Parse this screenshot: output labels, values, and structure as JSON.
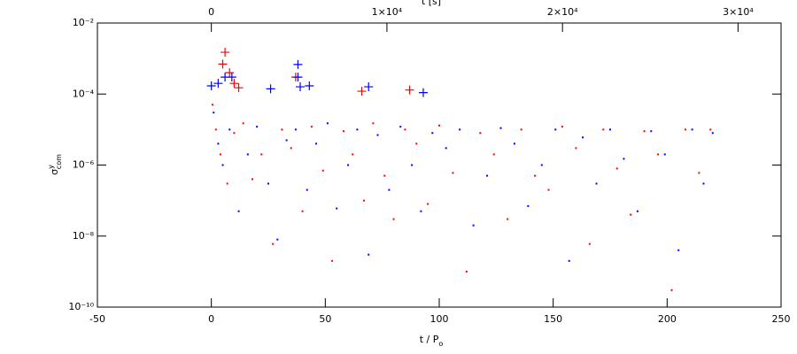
{
  "chart_data": {
    "type": "scatter",
    "xlabel": {
      "main": "t / P",
      "sub": "o"
    },
    "ylabel": {
      "main": "σ",
      "sup": "y",
      "sub": "com"
    },
    "x2label": "t [s]",
    "xlim": [
      -50,
      250
    ],
    "xticks": [
      -50,
      0,
      50,
      100,
      150,
      200,
      250
    ],
    "x2lim": [
      -6490,
      32450
    ],
    "x2ticks": [
      0,
      {
        "value": 10000,
        "label": "1×10⁴"
      },
      {
        "value": 20000,
        "label": "2×10⁴"
      },
      {
        "value": 30000,
        "label": "3×10⁴"
      }
    ],
    "ylog": true,
    "ylim": [
      1e-10,
      0.01
    ],
    "yticks": [
      {
        "value": 1e-10,
        "label": "10⁻¹⁰"
      },
      {
        "value": 1e-08,
        "label": "10⁻⁸"
      },
      {
        "value": 1e-06,
        "label": "10⁻⁶"
      },
      {
        "value": 0.0001,
        "label": "10⁻⁴"
      },
      {
        "value": 0.01,
        "label": "10⁻²"
      }
    ],
    "series": [
      {
        "color": "#0000ff",
        "marker": "dot",
        "x": [
          1,
          3,
          5,
          8,
          12,
          16,
          20,
          25,
          29,
          33,
          37,
          42,
          46,
          51,
          55,
          60,
          64,
          69,
          73,
          78,
          83,
          88,
          92,
          97,
          103,
          109,
          115,
          121,
          127,
          133,
          139,
          145,
          151,
          157,
          163,
          169,
          175,
          181,
          187,
          193,
          199,
          205,
          211,
          216,
          220
        ],
        "values": [
          3e-05,
          4e-06,
          1e-06,
          1e-05,
          5e-08,
          2e-06,
          1.2e-05,
          3e-07,
          8e-09,
          5e-06,
          1e-05,
          2e-07,
          4e-06,
          1.5e-05,
          6e-08,
          1e-06,
          1e-05,
          3e-09,
          7e-06,
          2e-07,
          1.2e-05,
          1e-06,
          5e-08,
          8e-06,
          3e-06,
          1e-05,
          2e-08,
          5e-07,
          1.1e-05,
          4e-06,
          7e-08,
          1e-06,
          1e-05,
          2e-09,
          6e-06,
          3e-07,
          1e-05,
          1.5e-06,
          5e-08,
          9e-06,
          2e-06,
          4e-09,
          1e-05,
          3e-07,
          8e-06
        ]
      },
      {
        "color": "#ff0000",
        "marker": "dot",
        "x": [
          0.5,
          2,
          4,
          7,
          10,
          14,
          18,
          22,
          27,
          31,
          35,
          40,
          44,
          49,
          53,
          58,
          62,
          67,
          71,
          76,
          80,
          85,
          90,
          95,
          100,
          106,
          112,
          118,
          124,
          130,
          136,
          142,
          148,
          154,
          160,
          166,
          172,
          178,
          184,
          190,
          196,
          202,
          208,
          214,
          219
        ],
        "values": [
          5e-05,
          1e-05,
          2e-06,
          3e-07,
          8e-06,
          1.5e-05,
          4e-07,
          2e-06,
          6e-09,
          1e-05,
          3e-06,
          5e-08,
          1.2e-05,
          7e-07,
          2e-09,
          9e-06,
          2e-06,
          1e-07,
          1.5e-05,
          5e-07,
          3e-08,
          1e-05,
          4e-06,
          8e-08,
          1.3e-05,
          6e-07,
          1e-09,
          8e-06,
          2e-06,
          3e-08,
          1e-05,
          5e-07,
          2e-07,
          1.2e-05,
          3e-06,
          6e-09,
          1e-05,
          8e-07,
          4e-08,
          9e-06,
          2e-06,
          3e-10,
          1e-05,
          6e-07,
          1e-05
        ]
      },
      {
        "color": "#ff0000",
        "marker": "plus",
        "x": [
          6,
          5,
          8,
          10,
          12,
          37,
          66,
          87
        ],
        "values": [
          0.0015,
          0.0007,
          0.0004,
          0.0002,
          0.00015,
          0.0003,
          0.00012,
          0.00013
        ]
      },
      {
        "color": "#0000ff",
        "marker": "plus",
        "x": [
          0,
          3,
          6,
          9,
          26,
          38,
          38,
          39,
          43,
          69,
          93
        ],
        "values": [
          0.00017,
          0.0002,
          0.0003,
          0.0003,
          0.00014,
          0.00068,
          0.0003,
          0.00016,
          0.00017,
          0.00016,
          0.00011
        ]
      }
    ]
  }
}
